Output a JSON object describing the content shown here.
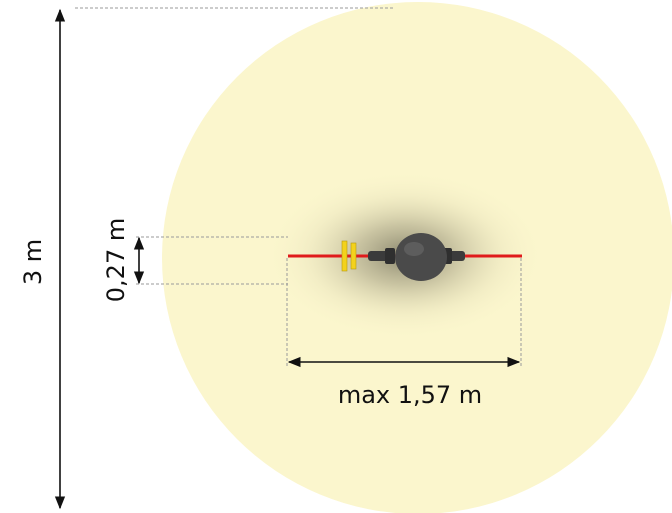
{
  "dimensions": {
    "height_label": "3 m",
    "width_label": "max 1,57 m",
    "depth_label": "0,27 m"
  },
  "colors": {
    "safety_zone": "#fbf6cd",
    "rope": "#e01b1b",
    "seat": "#4a4a4a",
    "yellow_marker": "#f3d21c",
    "dimension_line": "#111111",
    "guide_line": "#9a9a9a"
  }
}
